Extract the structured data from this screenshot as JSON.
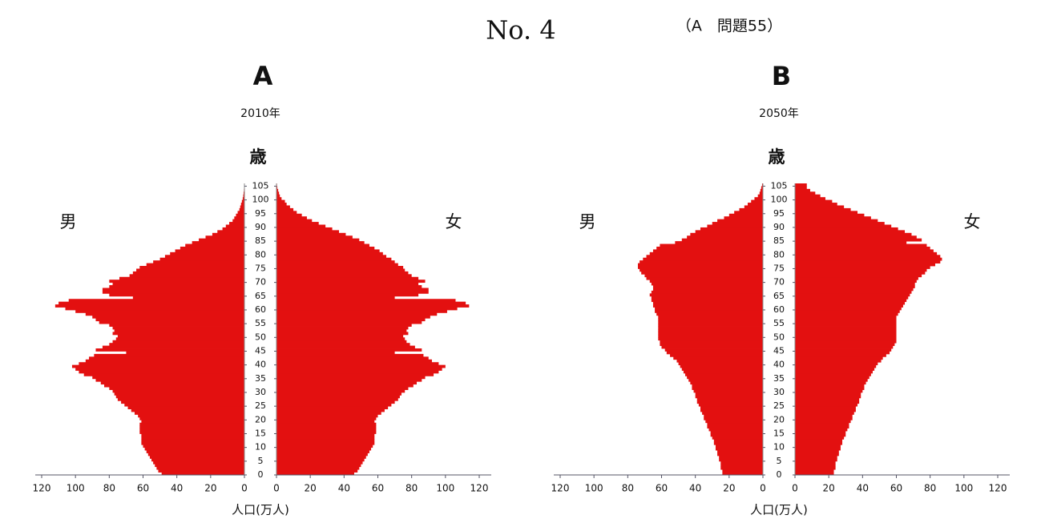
{
  "header": {
    "title": "No. 4",
    "note": "（A　問題55）"
  },
  "chart_data": [
    {
      "type": "pyramid",
      "title": "A",
      "subtitle": "2010年",
      "y_label": "歳",
      "x_label": "人口(万人)",
      "y": [
        0,
        1,
        2,
        3,
        4,
        5,
        6,
        7,
        8,
        9,
        10,
        11,
        12,
        13,
        14,
        15,
        16,
        17,
        18,
        19,
        20,
        21,
        22,
        23,
        24,
        25,
        26,
        27,
        28,
        29,
        30,
        31,
        32,
        33,
        34,
        35,
        36,
        37,
        38,
        39,
        40,
        41,
        42,
        43,
        44,
        45,
        46,
        47,
        48,
        49,
        50,
        51,
        52,
        53,
        54,
        55,
        56,
        57,
        58,
        59,
        60,
        61,
        62,
        63,
        64,
        65,
        66,
        67,
        68,
        69,
        70,
        71,
        72,
        73,
        74,
        75,
        76,
        77,
        78,
        79,
        80,
        81,
        82,
        83,
        84,
        85,
        86,
        87,
        88,
        89,
        90,
        91,
        92,
        93,
        94,
        95,
        96,
        97,
        98,
        99,
        100,
        101,
        102,
        103,
        104,
        105
      ],
      "ylim": [
        0,
        106
      ],
      "yticks": [
        0,
        5,
        10,
        15,
        20,
        25,
        30,
        35,
        40,
        45,
        50,
        55,
        60,
        65,
        70,
        75,
        80,
        85,
        90,
        95,
        100,
        105
      ],
      "xlim": [
        0,
        120
      ],
      "xticks": [
        0,
        20,
        40,
        60,
        80,
        100,
        120
      ],
      "series": [
        {
          "name": "男",
          "color": "#e31010",
          "values": [
            49,
            51,
            52,
            53,
            54,
            55,
            56,
            57,
            58,
            59,
            60,
            61,
            61,
            61,
            61,
            62,
            62,
            62,
            62,
            61,
            62,
            63,
            65,
            67,
            69,
            71,
            73,
            75,
            76,
            77,
            78,
            80,
            83,
            85,
            88,
            90,
            95,
            98,
            100,
            102,
            98,
            94,
            92,
            89,
            70,
            88,
            84,
            80,
            78,
            76,
            75,
            78,
            77,
            78,
            80,
            86,
            88,
            90,
            94,
            100,
            106,
            112,
            110,
            104,
            66,
            80,
            84,
            84,
            80,
            78,
            80,
            74,
            68,
            66,
            64,
            62,
            58,
            54,
            50,
            47,
            44,
            41,
            38,
            35,
            31,
            27,
            23,
            19,
            16,
            13,
            11,
            9,
            7,
            6,
            5,
            4,
            3,
            2.5,
            2,
            1.5,
            1,
            0.7,
            0.5,
            0.3,
            0.2,
            0.1
          ]
        },
        {
          "name": "女",
          "color": "#e31010",
          "values": [
            46,
            48,
            49,
            50,
            51,
            52,
            53,
            54,
            55,
            56,
            57,
            58,
            58,
            58,
            58,
            59,
            59,
            59,
            59,
            58,
            59,
            60,
            62,
            64,
            66,
            68,
            70,
            72,
            73,
            74,
            76,
            78,
            81,
            83,
            86,
            88,
            93,
            96,
            98,
            100,
            96,
            92,
            90,
            87,
            70,
            86,
            82,
            79,
            77,
            76,
            75,
            78,
            77,
            78,
            80,
            86,
            88,
            91,
            95,
            101,
            107,
            114,
            112,
            106,
            70,
            84,
            90,
            90,
            86,
            84,
            88,
            84,
            80,
            78,
            76,
            75,
            72,
            70,
            68,
            65,
            63,
            61,
            58,
            55,
            52,
            49,
            45,
            41,
            37,
            33,
            29,
            25,
            21,
            18,
            15,
            12,
            10,
            8,
            6,
            5,
            3,
            2,
            1.5,
            1,
            0.5,
            0.3
          ]
        }
      ]
    },
    {
      "type": "pyramid",
      "title": "B",
      "subtitle": "2050年",
      "y_label": "歳",
      "x_label": "人口(万人)",
      "y": [
        0,
        1,
        2,
        3,
        4,
        5,
        6,
        7,
        8,
        9,
        10,
        11,
        12,
        13,
        14,
        15,
        16,
        17,
        18,
        19,
        20,
        21,
        22,
        23,
        24,
        25,
        26,
        27,
        28,
        29,
        30,
        31,
        32,
        33,
        34,
        35,
        36,
        37,
        38,
        39,
        40,
        41,
        42,
        43,
        44,
        45,
        46,
        47,
        48,
        49,
        50,
        51,
        52,
        53,
        54,
        55,
        56,
        57,
        58,
        59,
        60,
        61,
        62,
        63,
        64,
        65,
        66,
        67,
        68,
        69,
        70,
        71,
        72,
        73,
        74,
        75,
        76,
        77,
        78,
        79,
        80,
        81,
        82,
        83,
        84,
        85,
        86,
        87,
        88,
        89,
        90,
        91,
        92,
        93,
        94,
        95,
        96,
        97,
        98,
        99,
        100,
        101,
        102,
        103,
        104,
        105
      ],
      "ylim": [
        0,
        106
      ],
      "yticks": [
        0,
        5,
        10,
        15,
        20,
        25,
        30,
        35,
        40,
        45,
        50,
        55,
        60,
        65,
        70,
        75,
        80,
        85,
        90,
        95,
        100,
        105
      ],
      "xlim": [
        0,
        120
      ],
      "xticks": [
        0,
        20,
        40,
        60,
        80,
        100,
        120
      ],
      "series": [
        {
          "name": "男",
          "color": "#e31010",
          "values": [
            24,
            24,
            25,
            25,
            25,
            26,
            26,
            27,
            27,
            28,
            28,
            29,
            29,
            30,
            31,
            31,
            32,
            33,
            33,
            34,
            35,
            35,
            36,
            37,
            37,
            38,
            39,
            39,
            40,
            40,
            41,
            42,
            42,
            43,
            44,
            45,
            46,
            47,
            48,
            49,
            50,
            51,
            53,
            55,
            57,
            58,
            60,
            61,
            61,
            62,
            62,
            62,
            62,
            62,
            62,
            62,
            62,
            62,
            63,
            64,
            64,
            65,
            65,
            66,
            66,
            67,
            66,
            65,
            65,
            66,
            67,
            69,
            70,
            72,
            73,
            74,
            74,
            73,
            71,
            69,
            67,
            65,
            63,
            61,
            52,
            48,
            45,
            43,
            40,
            37,
            33,
            30,
            27,
            23,
            20,
            17,
            14,
            11,
            9,
            7,
            5,
            3,
            2,
            1.5,
            1,
            0.5
          ]
        },
        {
          "name": "女",
          "color": "#e31010",
          "values": [
            23,
            23,
            24,
            24,
            24,
            25,
            25,
            26,
            26,
            27,
            27,
            28,
            28,
            29,
            30,
            30,
            31,
            32,
            32,
            33,
            34,
            34,
            35,
            36,
            36,
            37,
            38,
            38,
            39,
            39,
            40,
            41,
            41,
            42,
            43,
            44,
            45,
            46,
            47,
            48,
            49,
            51,
            52,
            54,
            56,
            57,
            58,
            59,
            60,
            60,
            60,
            60,
            60,
            60,
            60,
            60,
            60,
            60,
            61,
            62,
            63,
            64,
            65,
            66,
            67,
            68,
            69,
            70,
            71,
            71,
            72,
            73,
            75,
            77,
            78,
            80,
            83,
            86,
            87,
            86,
            84,
            82,
            80,
            78,
            66,
            75,
            72,
            69,
            65,
            61,
            57,
            53,
            49,
            45,
            41,
            37,
            33,
            29,
            25,
            22,
            18,
            15,
            12,
            9,
            7,
            7
          ]
        }
      ]
    }
  ]
}
